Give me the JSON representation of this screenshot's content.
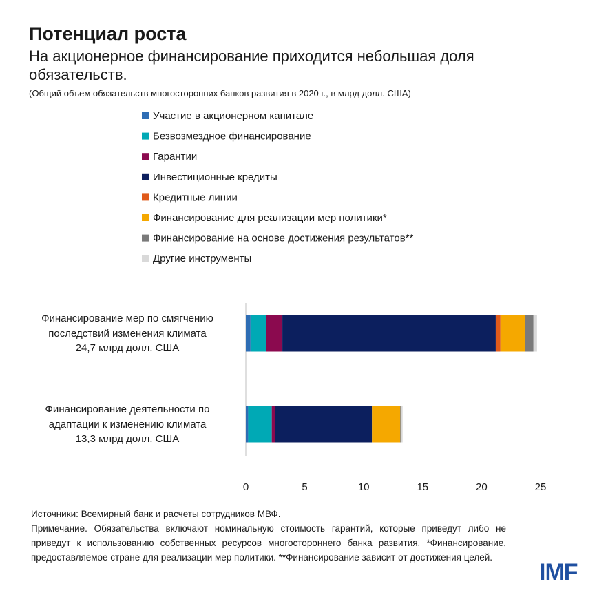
{
  "chart_data": {
    "type": "stacked_barh",
    "title": "Потенциал роста",
    "subtitle": "На акционерное финансирование приходится небольшая доля обязательств.",
    "note": "(Общий объем обязательств многосторонних банков развития в 2020 г., в млрд долл. США)",
    "categories": [
      "Финансирование мер по смягчению\nпоследствий изменения климата\n24,7 млрд долл. США",
      "Финансирование деятельности по\nадаптации к изменению климата\n13,3 млрд долл. США"
    ],
    "series": [
      {
        "name": "Участие в акционерном капитале",
        "color": "#2e6db4",
        "values": [
          0.4,
          0.2
        ]
      },
      {
        "name": "Безвозмездное финансирование",
        "color": "#00a9b5",
        "values": [
          1.3,
          2.0
        ]
      },
      {
        "name": "Гарантии",
        "color": "#8b0a4f",
        "values": [
          1.4,
          0.3
        ]
      },
      {
        "name": "Инвестиционные кредиты",
        "color": "#0c1f5e",
        "values": [
          18.1,
          8.2
        ]
      },
      {
        "name": "Кредитные линии",
        "color": "#e05a1a",
        "values": [
          0.4,
          0.0
        ]
      },
      {
        "name": "Финансирование для реализации мер политики*",
        "color": "#f5a800",
        "values": [
          2.1,
          2.4
        ]
      },
      {
        "name": "Финансирование на основе достижения результатов**",
        "color": "#7a7a7a",
        "values": [
          0.7,
          0.1
        ]
      },
      {
        "name": "Другие инструменты",
        "color": "#d9d9d9",
        "values": [
          0.3,
          0.1
        ]
      }
    ],
    "xlim": [
      0,
      25
    ],
    "xticks": [
      0,
      5,
      10,
      15,
      20,
      25
    ],
    "sources": "Источники: Всемирный банк и расчеты сотрудников МВФ.",
    "footnote": "Примечание. Обязательства включают номинальную стоимость гарантий, которые приведут либо не приведут к использованию собственных ресурсов многостороннего банка развития. *Финансирование, предоставляемое стране для реализации мер политики. **Финансирование зависит от достижения целей.",
    "logo": "IMF"
  }
}
